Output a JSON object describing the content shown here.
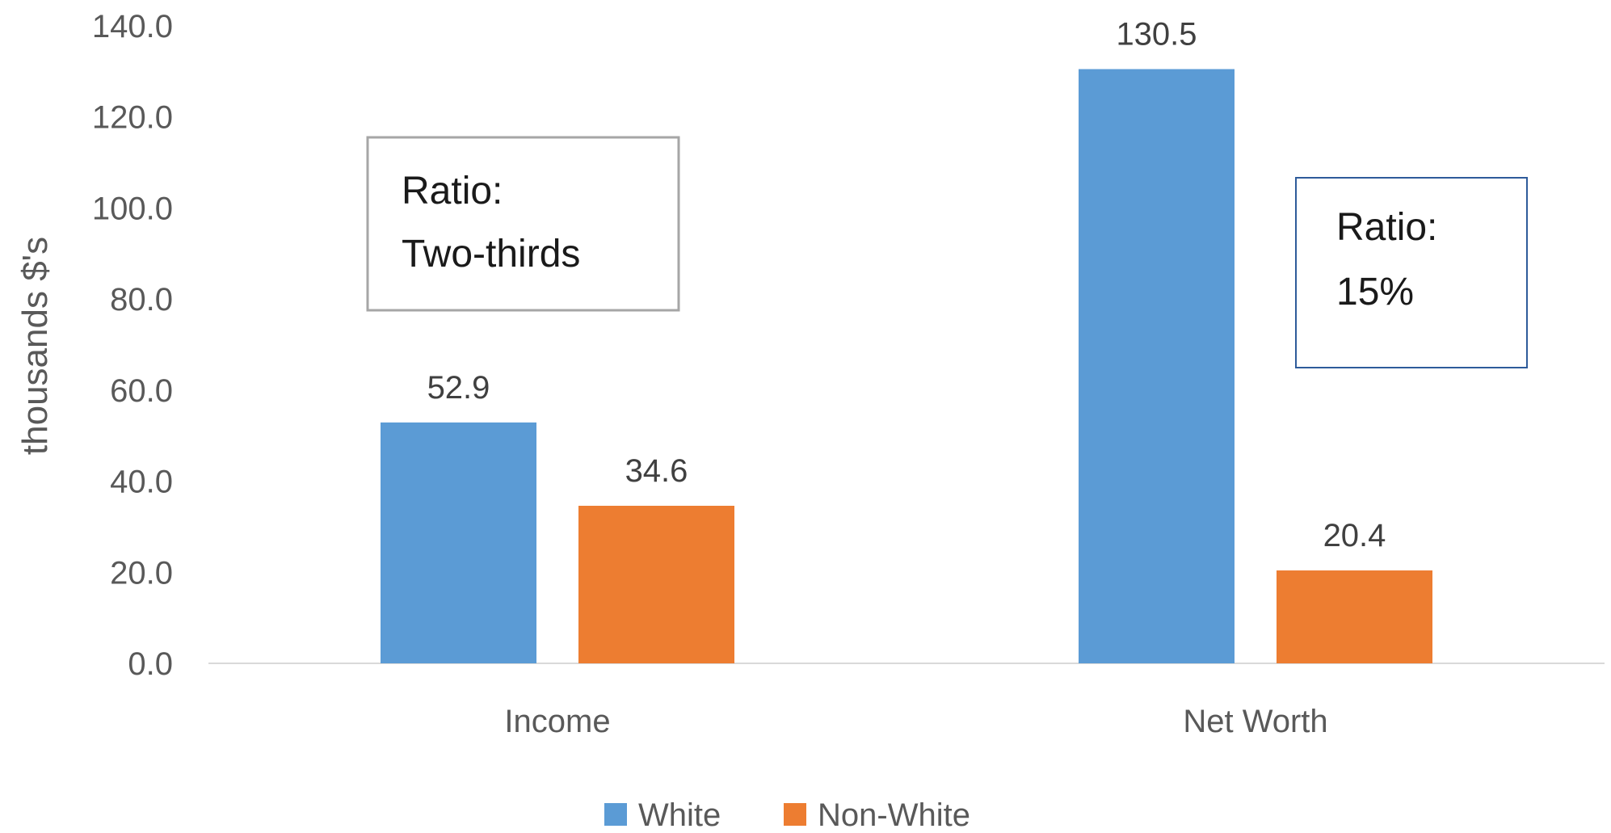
{
  "chart_data": {
    "type": "bar",
    "categories": [
      "Income",
      "Net Worth"
    ],
    "series": [
      {
        "name": "White",
        "values": [
          52.9,
          130.5
        ],
        "color": "#5b9bd5"
      },
      {
        "name": "Non-White",
        "values": [
          34.6,
          20.4
        ],
        "color": "#ed7d31"
      }
    ],
    "data_labels": [
      [
        "52.9",
        "130.5"
      ],
      [
        "34.6",
        "20.4"
      ]
    ],
    "ylabel": "thousands $'s",
    "ylim": [
      0,
      140
    ],
    "yticks": [
      "0.0",
      "20.0",
      "40.0",
      "60.0",
      "80.0",
      "100.0",
      "120.0",
      "140.0"
    ],
    "grid": false,
    "legend_position": "bottom",
    "annotations": [
      {
        "line1": "Ratio:",
        "line2": "Two-thirds",
        "border_color": "#a6a6a6"
      },
      {
        "line1": "Ratio:",
        "line2": "15%",
        "border_color": "#2e5b9a"
      }
    ]
  }
}
